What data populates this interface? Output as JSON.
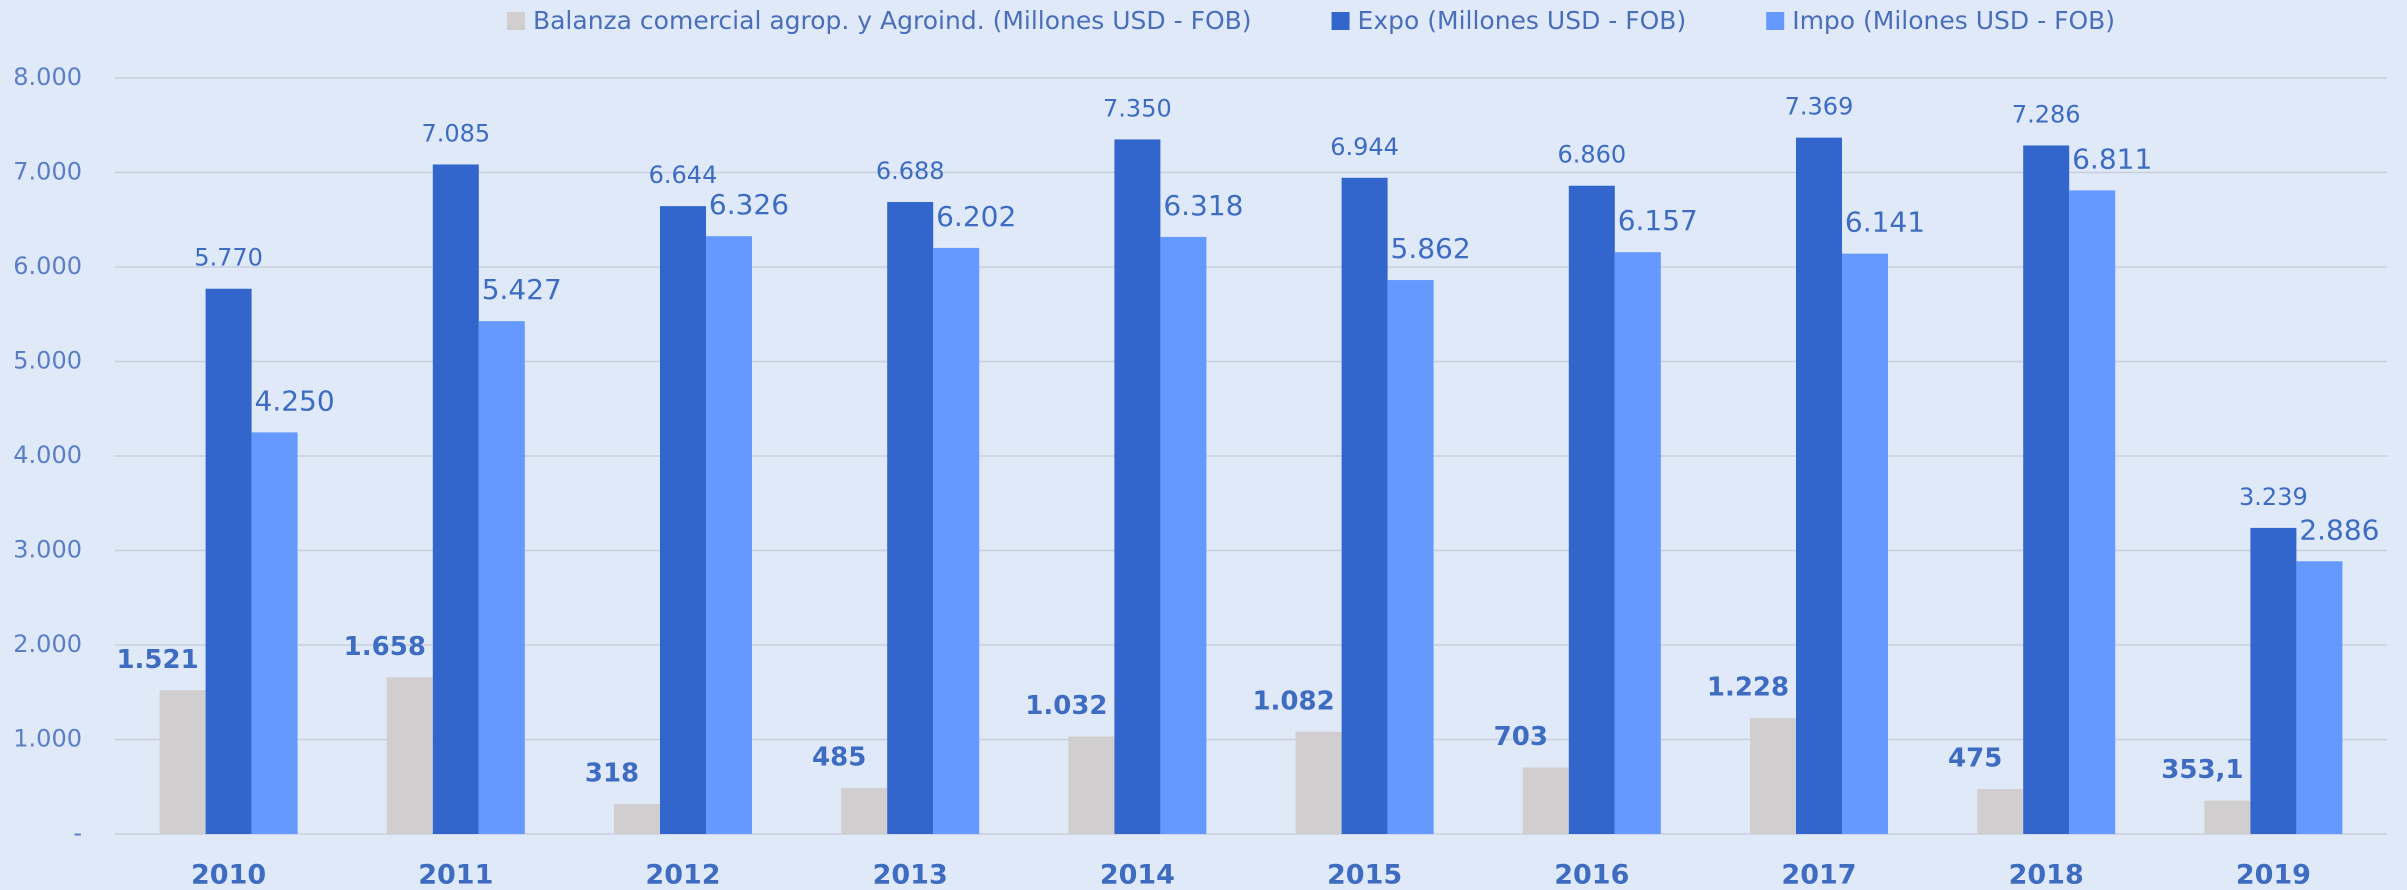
{
  "chart_data": {
    "type": "bar",
    "categories": [
      "2010",
      "2011",
      "2012",
      "2013",
      "2014",
      "2015",
      "2016",
      "2017",
      "2018",
      "2019"
    ],
    "series": [
      {
        "name": "Balanza comercial agrop. y Agroind. (Millones USD - FOB)",
        "color": "#d0cece",
        "values": [
          1521,
          1658,
          318,
          485,
          1032,
          1082,
          703,
          1228,
          475,
          353.1
        ],
        "value_labels": [
          "1.521",
          "1.658",
          "318",
          "485",
          "1.032",
          "1.082",
          "703",
          "1.228",
          "475",
          "353,1"
        ]
      },
      {
        "name": "Expo (Millones USD - FOB)",
        "color": "#3366cc",
        "values": [
          5770,
          7085,
          6644,
          6688,
          7350,
          6944,
          6860,
          7369,
          7286,
          3239
        ],
        "value_labels": [
          "5.770",
          "7.085",
          "6.644",
          "6.688",
          "7.350",
          "6.944",
          "6.860",
          "7.369",
          "7.286",
          "3.239"
        ]
      },
      {
        "name": "Impo (Milones USD - FOB)",
        "color": "#6699ff",
        "values": [
          4250,
          5427,
          6326,
          6202,
          6318,
          5862,
          6157,
          6141,
          6811,
          2886
        ],
        "value_labels": [
          "4.250",
          "5.427",
          "6.326",
          "6.202",
          "6.318",
          "5.862",
          "6.157",
          "6.141",
          "6.811",
          "2.886"
        ]
      }
    ],
    "ylim": [
      0,
      8000
    ],
    "yticks": [
      {
        "value": 0,
        "label": "-"
      },
      {
        "value": 1000,
        "label": "1.000"
      },
      {
        "value": 2000,
        "label": "2.000"
      },
      {
        "value": 3000,
        "label": "3.000"
      },
      {
        "value": 4000,
        "label": "4.000"
      },
      {
        "value": 5000,
        "label": "5.000"
      },
      {
        "value": 6000,
        "label": "6.000"
      },
      {
        "value": 7000,
        "label": "7.000"
      },
      {
        "value": 8000,
        "label": "8.000"
      }
    ],
    "grid": true,
    "legend": "top"
  }
}
